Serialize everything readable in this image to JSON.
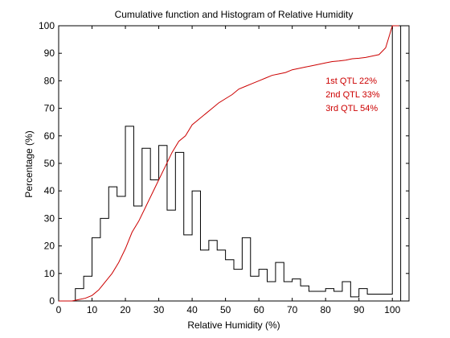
{
  "chart_data": {
    "type": "line",
    "title": "Cumulative function and Histogram of Relative Humidity",
    "xlabel": "Relative Humidity (%)",
    "ylabel": "Percentage (%)",
    "xlim": [
      0,
      105
    ],
    "ylim": [
      0,
      100
    ],
    "x_ticks": [
      0,
      10,
      20,
      30,
      40,
      50,
      60,
      70,
      80,
      90,
      100
    ],
    "y_ticks": [
      0,
      10,
      20,
      30,
      40,
      50,
      60,
      70,
      80,
      90,
      100
    ],
    "grid": false,
    "series": [
      {
        "style": "step",
        "color": "#000000",
        "x": [
          0,
          2.5,
          5,
          7.5,
          10,
          12.5,
          15,
          17.5,
          20,
          22.5,
          25,
          27.5,
          30,
          32.5,
          35,
          37.5,
          40,
          42.5,
          45,
          47.5,
          50,
          52.5,
          55,
          57.5,
          60,
          62.5,
          65,
          67.5,
          70,
          72.5,
          75,
          77.5,
          80,
          82.5,
          85,
          87.5,
          90,
          92.5,
          95,
          97.5,
          100,
          102.5,
          105
        ],
        "values": [
          0,
          0,
          4.5,
          9,
          23,
          30,
          41.5,
          38,
          63.5,
          34.5,
          55.5,
          44,
          56.5,
          33,
          54,
          24,
          40,
          18.5,
          22,
          18.5,
          15,
          11.5,
          23,
          9,
          11.5,
          7,
          14,
          7,
          8,
          5.5,
          3.5,
          3.5,
          4.5,
          3.5,
          7,
          1.5,
          4.5,
          2.5,
          2.5,
          2.5,
          100,
          0,
          100
        ]
      },
      {
        "style": "line",
        "color": "#cc0000",
        "x": [
          0,
          4,
          6,
          8,
          10,
          12,
          14,
          16,
          18,
          20,
          22,
          24,
          26,
          28,
          30,
          32,
          34,
          36,
          38,
          40,
          42,
          44,
          46,
          48,
          50,
          52,
          54,
          56,
          58,
          60,
          62,
          64,
          66,
          68,
          70,
          72,
          74,
          76,
          78,
          80,
          82,
          84,
          86,
          88,
          90,
          92,
          94,
          96,
          98,
          100,
          102
        ],
        "values": [
          0,
          0,
          0.5,
          1,
          2,
          4,
          7,
          10,
          14,
          19,
          25,
          29,
          34,
          39,
          44,
          49,
          54,
          58,
          60,
          64,
          66,
          68,
          70,
          72,
          73.5,
          75,
          77,
          78,
          79,
          80,
          81,
          82,
          82.5,
          83,
          84,
          84.5,
          85,
          85.5,
          86,
          86.5,
          87,
          87.2,
          87.5,
          88,
          88.2,
          88.5,
          89,
          89.5,
          92,
          100,
          100
        ]
      }
    ],
    "annotations": [
      {
        "text": "1st QTL  22%",
        "x": 80,
        "y": 79,
        "color": "#cc0000"
      },
      {
        "text": "2nd QTL  33%",
        "x": 80,
        "y": 74,
        "color": "#cc0000"
      },
      {
        "text": "3rd QTL  54%",
        "x": 80,
        "y": 69,
        "color": "#cc0000"
      }
    ]
  }
}
